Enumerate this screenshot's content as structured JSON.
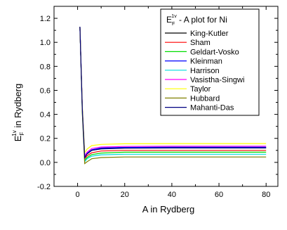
{
  "chart_data": {
    "type": "line",
    "xlabel": "A in Rydberg",
    "ylabel": {
      "main": "E",
      "sub": "F",
      "sup": "1v",
      "rest": " in Rydberg"
    },
    "legend_title": {
      "main": "E",
      "sub": "F",
      "sup": "1v",
      "rest": " - A plot for Ni"
    },
    "legend_position": "top-right",
    "xlim": [
      -10,
      85
    ],
    "ylim": [
      -0.2,
      1.3
    ],
    "x_ticks": [
      0,
      20,
      40,
      60,
      80
    ],
    "x_tick_labels": [
      "0",
      "20",
      "40",
      "60",
      "80"
    ],
    "y_ticks": [
      -0.2,
      0.0,
      0.2,
      0.4,
      0.6,
      0.8,
      1.0,
      1.2
    ],
    "y_tick_labels": [
      "-0.2",
      "0.0",
      "0.2",
      "0.4",
      "0.6",
      "0.8",
      "1.0",
      "1.2"
    ],
    "grid": false,
    "series": [
      {
        "name": "King-Kutler",
        "color": "#000000",
        "x": [
          1,
          2,
          3,
          4,
          6,
          10,
          20,
          40,
          80
        ],
        "y": [
          1.13,
          0.45,
          0.05,
          0.07,
          0.1,
          0.115,
          0.12,
          0.122,
          0.122
        ]
      },
      {
        "name": "Sham",
        "color": "#ff0000",
        "x": [
          1,
          2,
          3,
          4,
          6,
          10,
          20,
          40,
          80
        ],
        "y": [
          1.13,
          0.44,
          0.03,
          0.055,
          0.08,
          0.095,
          0.1,
          0.1,
          0.1
        ]
      },
      {
        "name": "Geldart-Vosko",
        "color": "#00dd00",
        "x": [
          1,
          2,
          3,
          4,
          6,
          10,
          20,
          40,
          80
        ],
        "y": [
          1.13,
          0.43,
          0.015,
          0.04,
          0.065,
          0.078,
          0.085,
          0.085,
          0.085
        ]
      },
      {
        "name": "Kleinman",
        "color": "#0000ff",
        "x": [
          1,
          2,
          3,
          4,
          6,
          10,
          20,
          40,
          80
        ],
        "y": [
          1.13,
          0.45,
          0.05,
          0.075,
          0.105,
          0.12,
          0.125,
          0.127,
          0.127
        ]
      },
      {
        "name": "Harrison",
        "color": "#00dddd",
        "x": [
          1,
          2,
          3,
          4,
          6,
          10,
          20,
          40,
          80
        ],
        "y": [
          1.13,
          0.42,
          0.005,
          0.03,
          0.052,
          0.063,
          0.068,
          0.068,
          0.068
        ]
      },
      {
        "name": "Vasistha-Singwi",
        "color": "#ff00ff",
        "x": [
          1,
          2,
          3,
          4,
          6,
          10,
          20,
          40,
          80
        ],
        "y": [
          1.13,
          0.45,
          0.055,
          0.085,
          0.115,
          0.128,
          0.133,
          0.135,
          0.135
        ]
      },
      {
        "name": "Taylor",
        "color": "#ffff00",
        "x": [
          1,
          2,
          3,
          4,
          6,
          10,
          20,
          40,
          80
        ],
        "y": [
          1.13,
          0.47,
          0.08,
          0.11,
          0.14,
          0.15,
          0.155,
          0.157,
          0.157
        ]
      },
      {
        "name": "Hubbard",
        "color": "#808000",
        "x": [
          1,
          2,
          3,
          4,
          6,
          10,
          20,
          40,
          80
        ],
        "y": [
          1.13,
          0.41,
          -0.01,
          0.005,
          0.03,
          0.04,
          0.045,
          0.045,
          0.045
        ]
      },
      {
        "name": "Mahanti-Das",
        "color": "#000080",
        "x": [
          1,
          2,
          3,
          4,
          6,
          10,
          20,
          40,
          80
        ],
        "y": [
          1.13,
          0.45,
          0.04,
          0.07,
          0.1,
          0.112,
          0.118,
          0.12,
          0.12
        ]
      }
    ]
  }
}
